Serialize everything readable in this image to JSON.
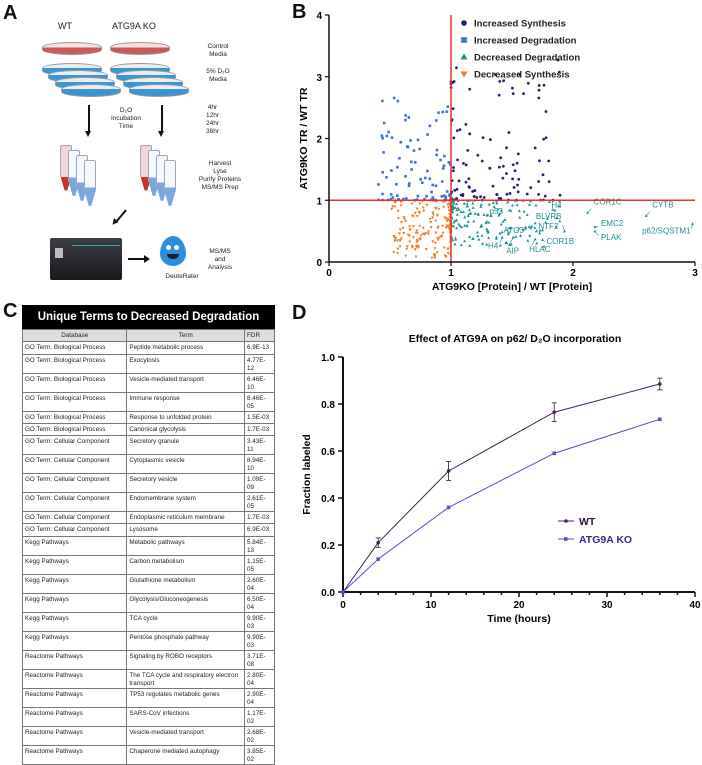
{
  "panels": {
    "a": "A",
    "b": "B",
    "c": "C",
    "d": "D"
  },
  "schematic": {
    "wt": "WT",
    "ko": "ATG9A KO",
    "control_media": [
      "Control",
      "Media"
    ],
    "d2o_media": [
      "5% D₂O",
      "Media"
    ],
    "incubation": [
      "D₂O",
      "Incubation",
      "Time"
    ],
    "times": [
      "4hr",
      "12hr",
      "24hr",
      "36hr"
    ],
    "prep": [
      "Harvest",
      "Lyse",
      "Purify Proteins",
      "MS/MS Prep"
    ],
    "analysis": [
      "MS/MS",
      "and",
      "Analysis"
    ],
    "software": "DeuteRater"
  },
  "table": {
    "title": "Unique Terms to Decreased Degradation",
    "headers": [
      "Database",
      "Term",
      "FDR"
    ],
    "rows": [
      [
        "GO Term: Biological Process",
        "Peptide metabolic process",
        "6.9E-13"
      ],
      [
        "GO Term: Biological Process",
        "Exocytosis",
        "4.77E-12"
      ],
      [
        "GO Term: Biological Process",
        "Vesicle-mediated transport",
        "6.46E-10"
      ],
      [
        "GO Term: Biological Process",
        "Immune response",
        "8.46E-05"
      ],
      [
        "GO Term: Biological Process",
        "Response to unfolded protein",
        "1.5E-03"
      ],
      [
        "GO Term: Biological Process",
        "Canonical glycolysis",
        "1.7E-03"
      ],
      [
        "GO Term: Cellular Component",
        "Secretory granule",
        "3.43E-11"
      ],
      [
        "GO Term: Cellular Component",
        "Cytoplasmic vesicle",
        "8.94E-10"
      ],
      [
        "GO Term: Cellular Component",
        "Secretory vesicle",
        "1.09E-09"
      ],
      [
        "GO Term: Cellular Component",
        "Endomembrane system",
        "2.61E-05"
      ],
      [
        "GO Term: Cellular Component",
        "Endoplasmic reticulum membrane",
        "1.7E-03"
      ],
      [
        "GO Term: Cellular Component",
        "Lysosome",
        "6.9E-03"
      ],
      [
        "Kegg Pathways",
        "Metabolic pathways",
        "5.84E-13"
      ],
      [
        "Kegg Pathways",
        "Carbon metabolism",
        "1.15E-05"
      ],
      [
        "Kegg Pathways",
        "Glutathione metabolism",
        "2.60E-04"
      ],
      [
        "Kegg Pathways",
        "Glycolysis/Gluconeogenesis",
        "6.50E-04"
      ],
      [
        "Kegg Pathways",
        "TCA cycle",
        "9.90E-03"
      ],
      [
        "Kegg Pathways",
        "Pentose phosphate pathway",
        "9.90E-03"
      ],
      [
        "Reactome Pathways",
        "Signaling by ROBO receptors",
        "3.71E-08"
      ],
      [
        "Reactome Pathways",
        "The TCA cycle and respiratory electron transport",
        "2.80E-04"
      ],
      [
        "Reactome Pathways",
        "TP53 regulates metabolic genes",
        "2.90E-04"
      ],
      [
        "Reactome Pathways",
        "SARS-CoV infections",
        "1.17E-02"
      ],
      [
        "Reactome Pathways",
        "Vesicle-mediated transport",
        "2.68E-02"
      ],
      [
        "Reactome Pathways",
        "Chaperone mediated autophagy",
        "3.85E-02"
      ]
    ]
  },
  "chart_data": [
    {
      "type": "scatter",
      "title": "",
      "xlabel": "ATG9KO [Protein] / WT [Protein]",
      "ylabel": "ATG9KO TR / WT TR",
      "xlim": [
        0,
        3
      ],
      "ylim": [
        0,
        4
      ],
      "xticks": [
        "0",
        "1",
        "2",
        "3"
      ],
      "yticks": [
        "0",
        "1",
        "2",
        "3",
        "4"
      ],
      "reference_lines": {
        "x": 1,
        "y": 1,
        "color": "#e8322a"
      },
      "legend_position": "top-right",
      "series": [
        {
          "name": "Increased Synthesis",
          "color": "#2a1f6e",
          "marker": "circle",
          "x_range": [
            1,
            1.9
          ],
          "y_range": [
            1,
            3.3
          ],
          "count": 110
        },
        {
          "name": "Increased Degradation",
          "color": "#3f72cf",
          "marker": "square",
          "x_range": [
            0.4,
            1
          ],
          "y_range": [
            1,
            2.7
          ],
          "count": 90
        },
        {
          "name": "Decreased Degradation",
          "color": "#1f8f92",
          "marker": "triangle",
          "x_range": [
            1,
            3
          ],
          "y_range": [
            0,
            1
          ],
          "count": 170
        },
        {
          "name": "Decreased Synthesis",
          "color": "#f47a22",
          "marker": "triangle-down",
          "x_range": [
            0.5,
            1
          ],
          "y_range": [
            0,
            1
          ],
          "count": 170
        }
      ],
      "labeled_points": [
        {
          "label": "CYTB",
          "x": 2.6,
          "y": 0.75
        },
        {
          "label": "p62/SQSTM1",
          "x": 2.98,
          "y": 0.62
        },
        {
          "label": "COR1C",
          "x": 2.12,
          "y": 0.8
        },
        {
          "label": "EMC2",
          "x": 2.18,
          "y": 0.57
        },
        {
          "label": "PLAK",
          "x": 2.18,
          "y": 0.5
        },
        {
          "label": "BLVRB",
          "x": 1.93,
          "y": 0.5
        },
        {
          "label": "NTF2",
          "x": 1.7,
          "y": 0.5
        },
        {
          "label": "H4",
          "x": 1.79,
          "y": 0.7
        },
        {
          "label": "COR1B",
          "x": 1.75,
          "y": 0.36
        },
        {
          "label": "HLAC",
          "x": 1.69,
          "y": 0.37
        },
        {
          "label": "ATG3",
          "x": 1.48,
          "y": 0.55
        },
        {
          "label": "AIP",
          "x": 1.51,
          "y": 0.4
        },
        {
          "label": "H4",
          "x": 1.42,
          "y": 0.4
        },
        {
          "label": "p53",
          "x": 1.3,
          "y": 0.76
        }
      ]
    },
    {
      "type": "line",
      "title": "Effect of ATG9A on p62/ D₂O incorporation",
      "xlabel": "Time (hours)",
      "ylabel": "Fraction labeled",
      "xlim": [
        0,
        40
      ],
      "ylim": [
        0,
        1
      ],
      "xticks": [
        "0",
        "10",
        "20",
        "30",
        "40"
      ],
      "yticks": [
        "0.0",
        "0.2",
        "0.4",
        "0.6",
        "0.8",
        "1.0"
      ],
      "legend_position": "center-right",
      "x": [
        0,
        4,
        12,
        24,
        36
      ],
      "series": [
        {
          "name": "WT",
          "color": "#4a1e5e",
          "values": [
            0,
            0.21,
            0.515,
            0.765,
            0.885
          ],
          "errors": [
            0,
            0.02,
            0.04,
            0.04,
            0.025
          ]
        },
        {
          "name": "ATG9A KO",
          "color": "#5252c4",
          "values": [
            0,
            0.14,
            0.36,
            0.59,
            0.735
          ],
          "errors": [
            0,
            0.005,
            0.005,
            0.005,
            0.005
          ]
        }
      ]
    }
  ]
}
